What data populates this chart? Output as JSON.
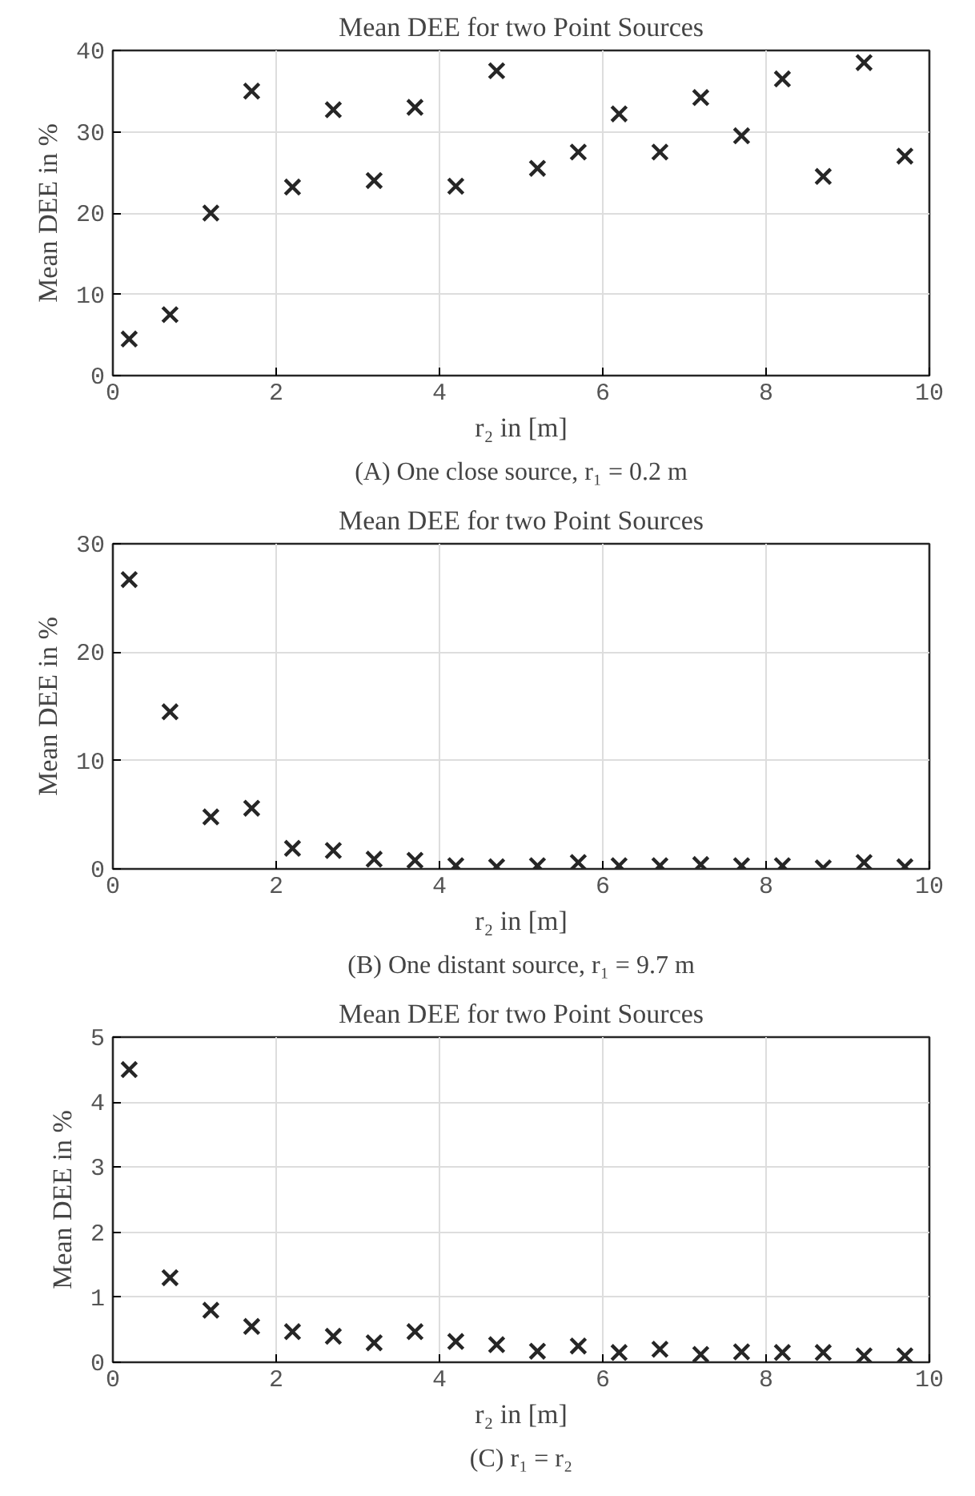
{
  "chart_data": [
    {
      "type": "scatter",
      "title": "Mean DEE for two Point Sources",
      "xlabel": "r₂ in [m]",
      "ylabel": "Mean DEE in %",
      "annotations": [
        "(A) One close source, r₁ = 0.2 m"
      ],
      "x": [
        0.2,
        0.7,
        1.2,
        1.7,
        2.2,
        2.7,
        3.2,
        3.7,
        4.2,
        4.7,
        5.2,
        5.7,
        6.2,
        6.7,
        7.2,
        7.7,
        8.2,
        8.7,
        9.2,
        9.7
      ],
      "series": [
        {
          "color": "#262626",
          "values": [
            4.5,
            7.5,
            20,
            35,
            23.2,
            32.7,
            24,
            33,
            23.3,
            37.5,
            25.5,
            27.5,
            32.2,
            27.5,
            34.2,
            29.5,
            36.5,
            24.5,
            38.5,
            27
          ]
        }
      ],
      "xlim": [
        0,
        10
      ],
      "ylim": [
        0,
        40
      ],
      "xticks": [
        0,
        2,
        4,
        6,
        8,
        10
      ],
      "yticks": [
        0,
        10,
        20,
        30,
        40
      ],
      "grid": true,
      "marker": "cross"
    },
    {
      "type": "scatter",
      "title": "Mean DEE for two Point Sources",
      "xlabel": "r₂ in [m]",
      "ylabel": "Mean DEE in %",
      "annotations": [
        "(B) One distant source, r₁ = 9.7 m"
      ],
      "x": [
        0.2,
        0.7,
        1.2,
        1.7,
        2.2,
        2.7,
        3.2,
        3.7,
        4.2,
        4.7,
        5.2,
        5.7,
        6.2,
        6.7,
        7.2,
        7.7,
        8.2,
        8.7,
        9.2,
        9.7
      ],
      "series": [
        {
          "color": "#262626",
          "values": [
            26.7,
            14.5,
            4.8,
            5.6,
            1.9,
            1.7,
            0.9,
            0.8,
            0.3,
            0.2,
            0.3,
            0.6,
            0.3,
            0.3,
            0.4,
            0.3,
            0.3,
            0.1,
            0.6,
            0.2
          ]
        }
      ],
      "xlim": [
        0,
        10
      ],
      "ylim": [
        0,
        30
      ],
      "xticks": [
        0,
        2,
        4,
        6,
        8,
        10
      ],
      "yticks": [
        0,
        10,
        20,
        30
      ],
      "grid": true,
      "marker": "cross"
    },
    {
      "type": "scatter",
      "title": "Mean DEE for two Point Sources",
      "xlabel": "r₂ in [m]",
      "ylabel": "Mean DEE in %",
      "annotations": [
        "(C) r₁ = r₂"
      ],
      "x": [
        0.2,
        0.7,
        1.2,
        1.7,
        2.2,
        2.7,
        3.2,
        3.7,
        4.2,
        4.7,
        5.2,
        5.7,
        6.2,
        6.7,
        7.2,
        7.7,
        8.2,
        8.7,
        9.2,
        9.7
      ],
      "series": [
        {
          "color": "#262626",
          "values": [
            4.5,
            1.3,
            0.8,
            0.55,
            0.47,
            0.4,
            0.3,
            0.47,
            0.32,
            0.27,
            0.17,
            0.25,
            0.15,
            0.2,
            0.12,
            0.16,
            0.15,
            0.15,
            0.1,
            0.1
          ]
        }
      ],
      "xlim": [
        0,
        10
      ],
      "ylim": [
        0,
        5
      ],
      "xticks": [
        0,
        2,
        4,
        6,
        8,
        10
      ],
      "yticks": [
        0,
        1,
        2,
        3,
        4,
        5
      ],
      "grid": true,
      "marker": "cross"
    }
  ]
}
